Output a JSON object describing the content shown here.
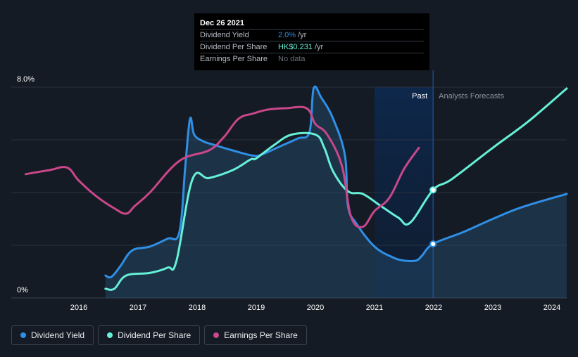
{
  "tooltip": {
    "date": "Dec 26 2021",
    "rows": [
      {
        "name": "Dividend Yield",
        "value": "2.0%",
        "unit": "/yr"
      },
      {
        "name": "Dividend Per Share",
        "value": "HK$0.231",
        "unit": "/yr"
      },
      {
        "name": "Earnings Per Share",
        "value": "No data",
        "unit": ""
      }
    ]
  },
  "regions": {
    "past": "Past",
    "forecast": "Analysts Forecasts"
  },
  "legend": [
    {
      "label": "Dividend Yield",
      "color": "#2f8fe6"
    },
    {
      "label": "Dividend Per Share",
      "color": "#66f0d8"
    },
    {
      "label": "Earnings Per Share",
      "color": "#c9478a"
    }
  ],
  "chart_data": {
    "type": "line",
    "title": "",
    "y_tick_labels": [
      "8.0%",
      "0%"
    ],
    "ylim": [
      0,
      8
    ],
    "xlim": [
      2015.05,
      2024.25
    ],
    "x_ticks": [
      2016,
      2017,
      2018,
      2019,
      2020,
      2021,
      2022,
      2023,
      2024
    ],
    "past_forecast_split": 2021.99,
    "grid": true,
    "legend_position": "bottom-left",
    "series": [
      {
        "name": "Dividend Yield",
        "color": "#2f8fe6",
        "area": true,
        "x": [
          2016.45,
          2016.55,
          2016.7,
          2016.9,
          2017.2,
          2017.5,
          2017.7,
          2017.8,
          2017.88,
          2017.95,
          2018.1,
          2018.3,
          2018.6,
          2018.95,
          2019.1,
          2019.4,
          2019.7,
          2019.9,
          2019.97,
          2020.1,
          2020.3,
          2020.5,
          2020.55,
          2020.7,
          2021.0,
          2021.3,
          2021.5,
          2021.7,
          2021.8,
          2021.99,
          2022.5,
          2023.0,
          2023.5,
          2024.25
        ],
        "y": [
          0.85,
          0.8,
          1.2,
          1.8,
          1.95,
          2.25,
          2.5,
          5.0,
          6.8,
          6.2,
          5.95,
          5.8,
          5.6,
          5.4,
          5.45,
          5.75,
          6.05,
          6.3,
          7.95,
          7.6,
          6.8,
          5.4,
          3.5,
          2.8,
          1.95,
          1.55,
          1.42,
          1.42,
          1.6,
          2.05,
          2.5,
          3.0,
          3.45,
          3.95
        ]
      },
      {
        "name": "Dividend Per Share",
        "color": "#66f0d8",
        "area": false,
        "x": [
          2016.45,
          2016.6,
          2016.8,
          2017.2,
          2017.5,
          2017.65,
          2017.92,
          2018.2,
          2018.6,
          2018.9,
          2019.0,
          2019.3,
          2019.6,
          2020.0,
          2020.15,
          2020.3,
          2020.55,
          2020.8,
          2021.1,
          2021.4,
          2021.6,
          2021.99,
          2022.3,
          2023.0,
          2023.6,
          2024.25
        ],
        "y": [
          0.35,
          0.35,
          0.85,
          0.95,
          1.15,
          1.4,
          4.5,
          4.55,
          4.85,
          5.25,
          5.3,
          5.8,
          6.2,
          6.2,
          5.7,
          4.8,
          4.05,
          3.95,
          3.5,
          3.05,
          2.85,
          4.1,
          4.5,
          5.7,
          6.7,
          7.95
        ]
      },
      {
        "name": "Earnings Per Share",
        "color": "#c9478a",
        "area": false,
        "x": [
          2015.1,
          2015.5,
          2015.8,
          2016.0,
          2016.3,
          2016.6,
          2016.8,
          2016.95,
          2017.2,
          2017.7,
          2018.2,
          2018.45,
          2018.7,
          2018.95,
          2019.2,
          2019.5,
          2019.85,
          2020.0,
          2020.2,
          2020.45,
          2020.6,
          2020.8,
          2021.0,
          2021.25,
          2021.5,
          2021.75
        ],
        "y": [
          4.7,
          4.85,
          4.95,
          4.45,
          3.85,
          3.4,
          3.2,
          3.5,
          4.0,
          5.2,
          5.6,
          6.1,
          6.8,
          7.0,
          7.15,
          7.2,
          7.2,
          6.6,
          6.2,
          5.0,
          3.1,
          2.7,
          3.3,
          3.8,
          4.9,
          5.7
        ]
      }
    ],
    "highlight_points": [
      {
        "series": "Dividend Yield",
        "x": 2021.99,
        "y": 2.05
      },
      {
        "series": "Dividend Per Share",
        "x": 2021.99,
        "y": 4.1
      }
    ]
  }
}
